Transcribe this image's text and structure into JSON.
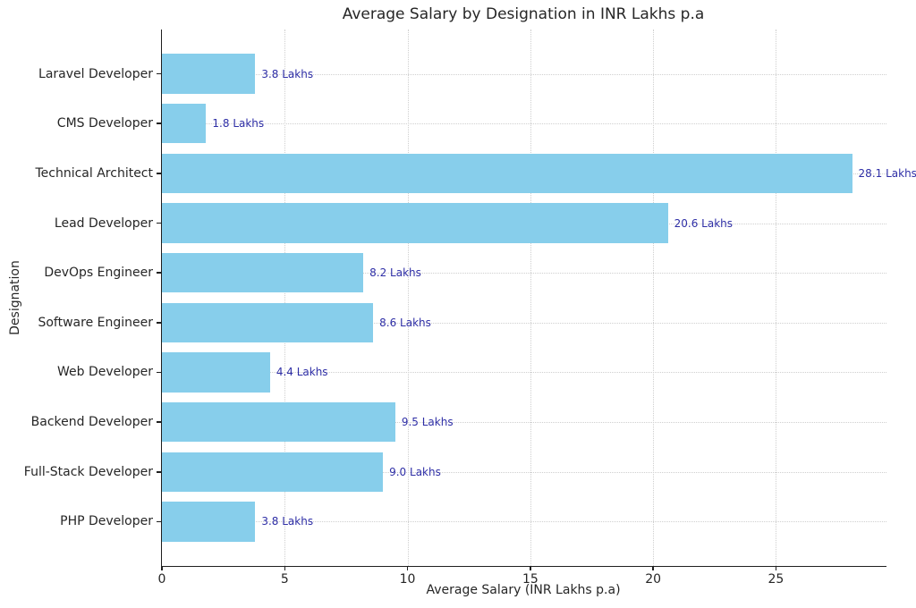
{
  "title": "Average Salary by Designation in INR Lakhs p.a",
  "chart_data": {
    "type": "bar",
    "orientation": "horizontal",
    "title": "Average Salary by Designation in INR Lakhs p.a",
    "xlabel": "Average Salary (INR Lakhs p.a)",
    "ylabel": "Designation",
    "categories": [
      "Laravel Developer",
      "CMS Developer",
      "Technical Architect",
      "Lead Developer",
      "DevOps Engineer",
      "Software Engineer",
      "Web Developer",
      "Backend Developer",
      "Full-Stack Developer",
      "PHP Developer"
    ],
    "values": [
      3.8,
      1.8,
      28.1,
      20.6,
      8.2,
      8.6,
      4.4,
      9.5,
      9.0,
      3.8
    ],
    "value_labels": [
      "3.8 Lakhs",
      "1.8 Lakhs",
      "28.1 Lakhs",
      "20.6 Lakhs",
      "8.2 Lakhs",
      "8.6 Lakhs",
      "4.4 Lakhs",
      "9.5 Lakhs",
      "9.0 Lakhs",
      "3.8 Lakhs"
    ],
    "xlim": [
      0,
      29.5
    ],
    "xticks": [
      0,
      5,
      10,
      15,
      20,
      25
    ],
    "xtick_labels": [
      "0",
      "5",
      "10",
      "15",
      "20",
      "25"
    ],
    "grid": true,
    "legend": "none",
    "bar_color": "#87ceeb",
    "value_label_color": "#2e2ea6",
    "axis_color": "#1f1f1f",
    "grid_color": "#cfcfcf"
  }
}
